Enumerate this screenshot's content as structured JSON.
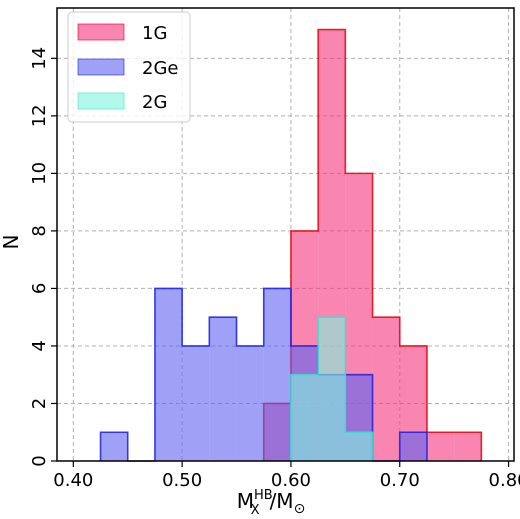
{
  "chart_data": {
    "type": "bar",
    "subtype": "histogram",
    "bin_width": 0.025,
    "xlabel": "M_X^HB/M_⊙",
    "xlabel_parts": {
      "main": "M",
      "sup": "HB",
      "sub": "X",
      "slash": "/M",
      "sun": "⊙"
    },
    "ylabel": "N",
    "xlim": [
      0.385,
      0.805
    ],
    "ylim": [
      0,
      15.75
    ],
    "xticks": [
      0.4,
      0.5,
      0.6,
      0.7,
      0.8
    ],
    "xtick_labels": [
      "0.40",
      "0.50",
      "0.60",
      "0.70",
      "0.80"
    ],
    "yticks": [
      0,
      2,
      4,
      6,
      8,
      10,
      12,
      14
    ],
    "ytick_labels": [
      "0",
      "2",
      "4",
      "6",
      "8",
      "10",
      "12",
      "14"
    ],
    "grid": true,
    "legend_position": "top-left",
    "series": [
      {
        "name": "1G",
        "fill": "#f4357d",
        "edge": "#e8000b",
        "alpha": 0.6,
        "bin_left_edges": [
          0.575,
          0.6,
          0.625,
          0.65,
          0.675,
          0.7,
          0.725,
          0.75
        ],
        "values": [
          2,
          8,
          15,
          10,
          5,
          4,
          1,
          1
        ]
      },
      {
        "name": "2Ge",
        "fill": "#5d63f0",
        "edge": "#1a1fe0",
        "alpha": 0.6,
        "bin_left_edges": [
          0.425,
          0.45,
          0.475,
          0.5,
          0.525,
          0.55,
          0.575,
          0.6,
          0.625,
          0.65,
          0.675,
          0.7
        ],
        "values": [
          1,
          0,
          6,
          4,
          5,
          4,
          6,
          4,
          3,
          3,
          0,
          1
        ]
      },
      {
        "name": "2G",
        "fill": "#7ff5dd",
        "edge": "#35e0d0",
        "alpha": 0.6,
        "bin_left_edges": [
          0.6,
          0.625,
          0.65
        ],
        "values": [
          3,
          5,
          1
        ]
      }
    ]
  }
}
